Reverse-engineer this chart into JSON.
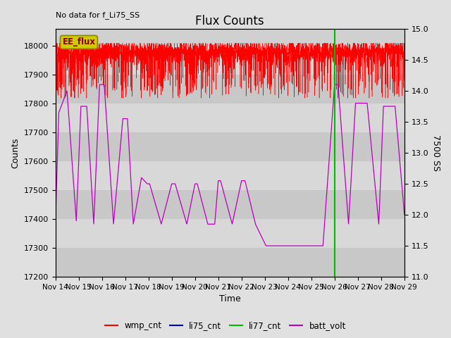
{
  "title": "Flux Counts",
  "top_left_text": "No data for f_Li75_SS",
  "xlabel": "Time",
  "ylabel_left": "Counts",
  "ylabel_right": "7500 SS",
  "ylim_left": [
    17200,
    18060
  ],
  "ylim_right": [
    11.0,
    15.0
  ],
  "yticks_left": [
    17200,
    17300,
    17400,
    17500,
    17600,
    17700,
    17800,
    17900,
    18000
  ],
  "yticks_right": [
    11.0,
    11.5,
    12.0,
    12.5,
    13.0,
    13.5,
    14.0,
    14.5,
    15.0
  ],
  "xtick_labels": [
    "Nov 14",
    "Nov 15",
    "Nov 16",
    "Nov 17",
    "Nov 18",
    "Nov 19",
    "Nov 20",
    "Nov 21",
    "Nov 22",
    "Nov 23",
    "Nov 24",
    "Nov 25",
    "Nov 26",
    "Nov 27",
    "Nov 28",
    "Nov 29"
  ],
  "bg_color": "#e0e0e0",
  "plot_bg_color": "#d0d0d0",
  "wmp_color": "#ff0000",
  "li75_color": "#0000cc",
  "li77_color": "#00bb00",
  "batt_color": "#bb00bb",
  "ee_flux_box_facecolor": "#cccc00",
  "ee_flux_box_edgecolor": "#888800",
  "ee_flux_text": "EE_flux",
  "ee_flux_text_color": "#880000",
  "grid_color": "#ffffff",
  "legend_entries": [
    "wmp_cnt",
    "li75_cnt",
    "li77_cnt",
    "batt_volt"
  ],
  "legend_colors": [
    "#ff0000",
    "#0000cc",
    "#00bb00",
    "#bb00bb"
  ],
  "wmp_base": 17980,
  "batt_ctrl_x": [
    0.0,
    0.15,
    0.5,
    0.9,
    1.1,
    1.35,
    1.65,
    1.9,
    2.1,
    2.5,
    2.9,
    3.1,
    3.35,
    3.7,
    3.95,
    4.05,
    4.55,
    5.0,
    5.15,
    5.65,
    6.0,
    6.1,
    6.55,
    6.85,
    7.0,
    7.1,
    7.6,
    8.0,
    8.15,
    8.6,
    9.05,
    9.2,
    9.65,
    10.0,
    10.5,
    11.0,
    11.5,
    12.0,
    12.15,
    12.6,
    12.9,
    13.4,
    13.9,
    14.1,
    14.6,
    15.0
  ],
  "batt_ctrl_v": [
    11.85,
    13.65,
    14.0,
    11.9,
    13.75,
    13.75,
    11.85,
    14.1,
    14.1,
    11.85,
    13.55,
    13.55,
    11.85,
    12.6,
    12.5,
    12.5,
    11.85,
    12.5,
    12.5,
    11.85,
    12.5,
    12.5,
    11.85,
    11.85,
    12.55,
    12.55,
    11.85,
    12.55,
    12.55,
    11.85,
    11.5,
    11.5,
    11.5,
    11.5,
    11.5,
    11.5,
    11.5,
    14.1,
    14.1,
    11.85,
    13.8,
    13.8,
    11.85,
    13.75,
    13.75,
    12.0
  ],
  "vline_x": 12.0
}
